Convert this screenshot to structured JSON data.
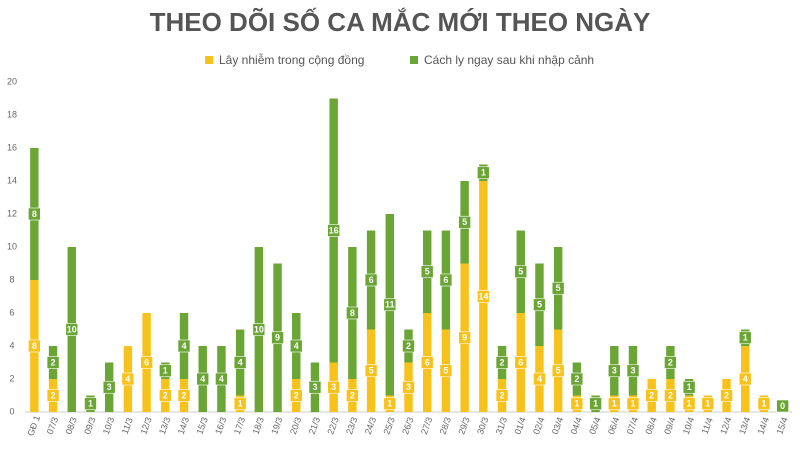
{
  "chart_data": {
    "type": "bar",
    "stacked": true,
    "title": "THEO DÕI SỐ CA MẮC MỚI THEO NGÀY",
    "categories": [
      "GĐ 1",
      "07/3",
      "08/3",
      "09/3",
      "10/3",
      "11/3",
      "12/3",
      "13/3",
      "14/3",
      "15/3",
      "16/3",
      "17/3",
      "18/3",
      "19/3",
      "20/3",
      "21/3",
      "22/3",
      "23/3",
      "24/3",
      "25/3",
      "26/3",
      "27/3",
      "28/3",
      "29/3",
      "30/3",
      "31/3",
      "01/4",
      "02/4",
      "03/4",
      "04/4",
      "05/4",
      "06/4",
      "07/4",
      "08/4",
      "09/4",
      "10/4",
      "11/4",
      "12/4",
      "13/4",
      "14/4",
      "15/4"
    ],
    "series": [
      {
        "name": "Lây nhiễm trong cộng đồng",
        "color": "#f7c21b",
        "values": [
          8,
          2,
          0,
          0,
          0,
          4,
          6,
          2,
          2,
          0,
          0,
          1,
          0,
          0,
          2,
          0,
          3,
          2,
          5,
          1,
          3,
          6,
          5,
          9,
          14,
          2,
          6,
          4,
          5,
          1,
          0,
          1,
          1,
          2,
          2,
          1,
          1,
          2,
          4,
          1,
          0
        ]
      },
      {
        "name": "Cách ly ngay sau khi nhập cảnh",
        "color": "#6aa535",
        "values": [
          8,
          2,
          10,
          1,
          3,
          0,
          0,
          1,
          4,
          4,
          4,
          4,
          10,
          9,
          4,
          3,
          16,
          8,
          6,
          11,
          2,
          5,
          6,
          5,
          1,
          2,
          5,
          5,
          5,
          2,
          1,
          3,
          3,
          0,
          2,
          1,
          0,
          0,
          1,
          0,
          0
        ]
      }
    ],
    "ylim": [
      0,
      20
    ],
    "yticks": [
      0,
      2,
      4,
      6,
      8,
      10,
      12,
      14,
      16,
      18,
      20
    ],
    "grid": false
  }
}
